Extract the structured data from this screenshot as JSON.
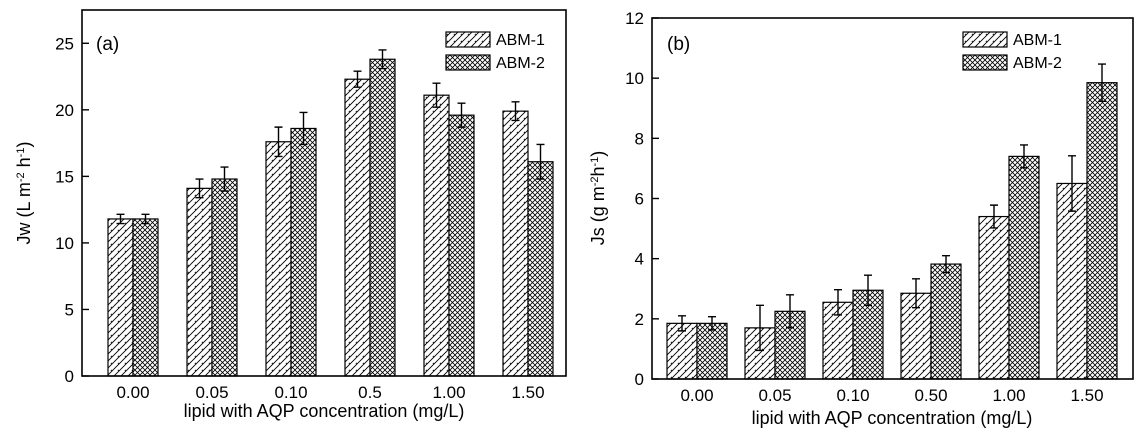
{
  "colors": {
    "stroke": "#000000",
    "background": "#ffffff"
  },
  "chart_data": [
    {
      "panel_label": "(a)",
      "type": "bar",
      "categories": [
        "0.00",
        "0.05",
        "0.10",
        "0.5",
        "1.00",
        "1.50"
      ],
      "series": [
        {
          "name": "ABM-1",
          "pattern": "diagonal-hatch",
          "values": [
            11.8,
            14.1,
            17.6,
            22.3,
            21.1,
            19.9
          ],
          "errors": [
            0.35,
            0.7,
            1.1,
            0.6,
            0.9,
            0.7
          ]
        },
        {
          "name": "ABM-2",
          "pattern": "cross-hatch",
          "values": [
            11.8,
            14.8,
            18.6,
            23.8,
            19.6,
            16.1
          ],
          "errors": [
            0.35,
            0.9,
            1.2,
            0.7,
            0.9,
            1.3
          ]
        }
      ],
      "xlabel": "lipid with AQP concentration (mg/L)",
      "ylabel_main": "Jw (L m",
      "ylabel_sup1": "-2",
      "ylabel_mid": " h",
      "ylabel_sup2": "-1",
      "ylabel_end": ")",
      "ylim": [
        0,
        27.5
      ],
      "yticks": [
        "0",
        "5",
        "10",
        "15",
        "20",
        "25"
      ],
      "legend_position": "top-right"
    },
    {
      "panel_label": "(b)",
      "type": "bar",
      "categories": [
        "0.00",
        "0.05",
        "0.10",
        "0.50",
        "1.00",
        "1.50"
      ],
      "series": [
        {
          "name": "ABM-1",
          "pattern": "diagonal-hatch",
          "values": [
            1.85,
            1.7,
            2.55,
            2.85,
            5.4,
            6.5
          ],
          "errors": [
            0.25,
            0.75,
            0.42,
            0.48,
            0.38,
            0.92
          ]
        },
        {
          "name": "ABM-2",
          "pattern": "cross-hatch",
          "values": [
            1.85,
            2.25,
            2.95,
            3.82,
            7.4,
            9.85
          ],
          "errors": [
            0.22,
            0.55,
            0.5,
            0.28,
            0.38,
            0.62
          ]
        }
      ],
      "xlabel": "lipid with AQP concentration (mg/L)",
      "ylabel_main": "Js (g m",
      "ylabel_sup1": "-2",
      "ylabel_mid": "h",
      "ylabel_sup2": "-1",
      "ylabel_end": ")",
      "ylim": [
        0,
        12
      ],
      "yticks": [
        "0",
        "2",
        "4",
        "6",
        "8",
        "10",
        "12"
      ],
      "legend_position": "top-right"
    }
  ]
}
